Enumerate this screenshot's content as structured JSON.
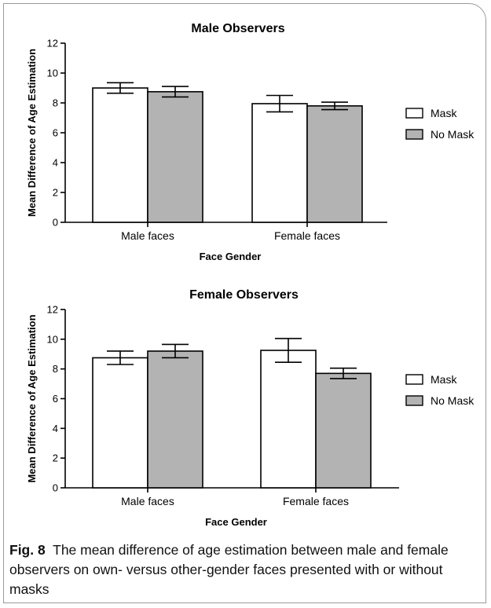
{
  "chart_data": [
    {
      "type": "bar",
      "title": "Male Observers",
      "xlabel": "Face Gender",
      "ylabel": "Mean Difference of Age Estimation",
      "ylim": [
        0,
        12
      ],
      "yticks": [
        0,
        2,
        4,
        6,
        8,
        10,
        12
      ],
      "categories": [
        "Male faces",
        "Female faces"
      ],
      "series": [
        {
          "name": "Mask",
          "color": "#ffffff",
          "values": [
            9.0,
            7.95
          ],
          "errors": [
            0.35,
            0.55
          ]
        },
        {
          "name": "No Mask",
          "color": "#b3b3b3",
          "values": [
            8.75,
            7.8
          ],
          "errors": [
            0.35,
            0.25
          ]
        }
      ],
      "legend": "right"
    },
    {
      "type": "bar",
      "title": "Female Observers",
      "xlabel": "Face Gender",
      "ylabel": "Mean Difference of Age Estimation",
      "ylim": [
        0,
        12
      ],
      "yticks": [
        0,
        2,
        4,
        6,
        8,
        10,
        12
      ],
      "categories": [
        "Male faces",
        "Female faces"
      ],
      "series": [
        {
          "name": "Mask",
          "color": "#ffffff",
          "values": [
            8.75,
            9.25
          ],
          "errors": [
            0.45,
            0.8
          ]
        },
        {
          "name": "No Mask",
          "color": "#b3b3b3",
          "values": [
            9.2,
            7.7
          ],
          "errors": [
            0.45,
            0.35
          ]
        }
      ],
      "legend": "right"
    }
  ],
  "caption": {
    "label": "Fig. 8",
    "text": "The mean difference of age estimation between male and female observers on own- versus other-gender faces presented with or without masks"
  }
}
